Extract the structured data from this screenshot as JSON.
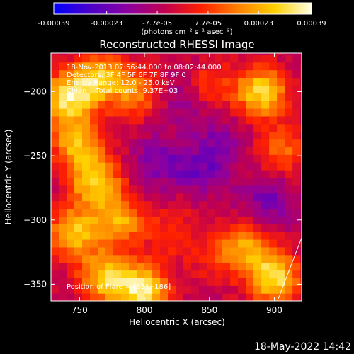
{
  "chart_data": {
    "type": "heatmap",
    "title": "Reconstructed RHESSI Image",
    "xlabel": "Heliocentric X (arcsec)",
    "ylabel": "Heliocentric Y (arcsec)",
    "xlim": [
      728,
      921
    ],
    "ylim": [
      -363,
      -170
    ],
    "x_ticks": [
      "750",
      "800",
      "850",
      "900"
    ],
    "y_ticks": [
      "-200",
      "-250",
      "-300",
      "-350"
    ],
    "x_tick_values": [
      750,
      800,
      850,
      900
    ],
    "y_tick_values": [
      -200,
      -250,
      -300,
      -350
    ],
    "colorbar": {
      "ticks": [
        "-0.00039",
        "-0.00023",
        "-7.7e-05",
        "7.7e-05",
        "0.00023",
        "0.00039"
      ],
      "tick_values": [
        -0.00039,
        -0.00023,
        -7.7e-05,
        7.7e-05,
        0.00023,
        0.00039
      ],
      "range": [
        -0.00039,
        0.00039
      ],
      "unit_label": "(photons cm⁻² s⁻¹ asec⁻²)",
      "colormap": [
        "#0000ff",
        "#4b00c8",
        "#8c00a0",
        "#c00050",
        "#ff2000",
        "#ff8000",
        "#ffd000",
        "#ffffe6"
      ]
    },
    "annotations": [
      "18-Nov-2013 07:56:44.000 to 08:02:44.000",
      "Detectors: 3F 4F 5F 6F 7F 8F 9F 0",
      "Energy Range: 12.0 - 25.0 keV",
      "Clean    Total counts: 9.37E+03"
    ],
    "flare_position": "Position of Flare = [831,-186]",
    "hot_regions": [
      {
        "x": 740,
        "y": -205,
        "value": 0.00036
      },
      {
        "x": 748,
        "y": -240,
        "value": 0.0003
      },
      {
        "x": 765,
        "y": -190,
        "value": 0.00033
      },
      {
        "x": 795,
        "y": -200,
        "value": 0.00022
      },
      {
        "x": 762,
        "y": -270,
        "value": 0.00034
      },
      {
        "x": 745,
        "y": -310,
        "value": 0.00032
      },
      {
        "x": 780,
        "y": -300,
        "value": 0.00028
      },
      {
        "x": 800,
        "y": -355,
        "value": 0.00039
      },
      {
        "x": 770,
        "y": -345,
        "value": 0.00034
      },
      {
        "x": 890,
        "y": -200,
        "value": 0.00036
      },
      {
        "x": 905,
        "y": -245,
        "value": 0.0002
      },
      {
        "x": 850,
        "y": -195,
        "value": 0.00015
      },
      {
        "x": 900,
        "y": -345,
        "value": 0.00037
      },
      {
        "x": 880,
        "y": -320,
        "value": 0.00025
      },
      {
        "x": 835,
        "y": -280,
        "value": 5e-05
      },
      {
        "x": 855,
        "y": -330,
        "value": 0.00012
      },
      {
        "x": 820,
        "y": -310,
        "value": 0.00012
      }
    ],
    "cold_regions": [
      {
        "x": 840,
        "y": -265,
        "value": -0.00016
      },
      {
        "x": 810,
        "y": -255,
        "value": -0.00012
      },
      {
        "x": 860,
        "y": -240,
        "value": -0.00012
      },
      {
        "x": 895,
        "y": -285,
        "value": -0.00014
      },
      {
        "x": 830,
        "y": -205,
        "value": -0.0001
      }
    ]
  },
  "footer": {
    "date": "18-May-2022 14:42"
  }
}
